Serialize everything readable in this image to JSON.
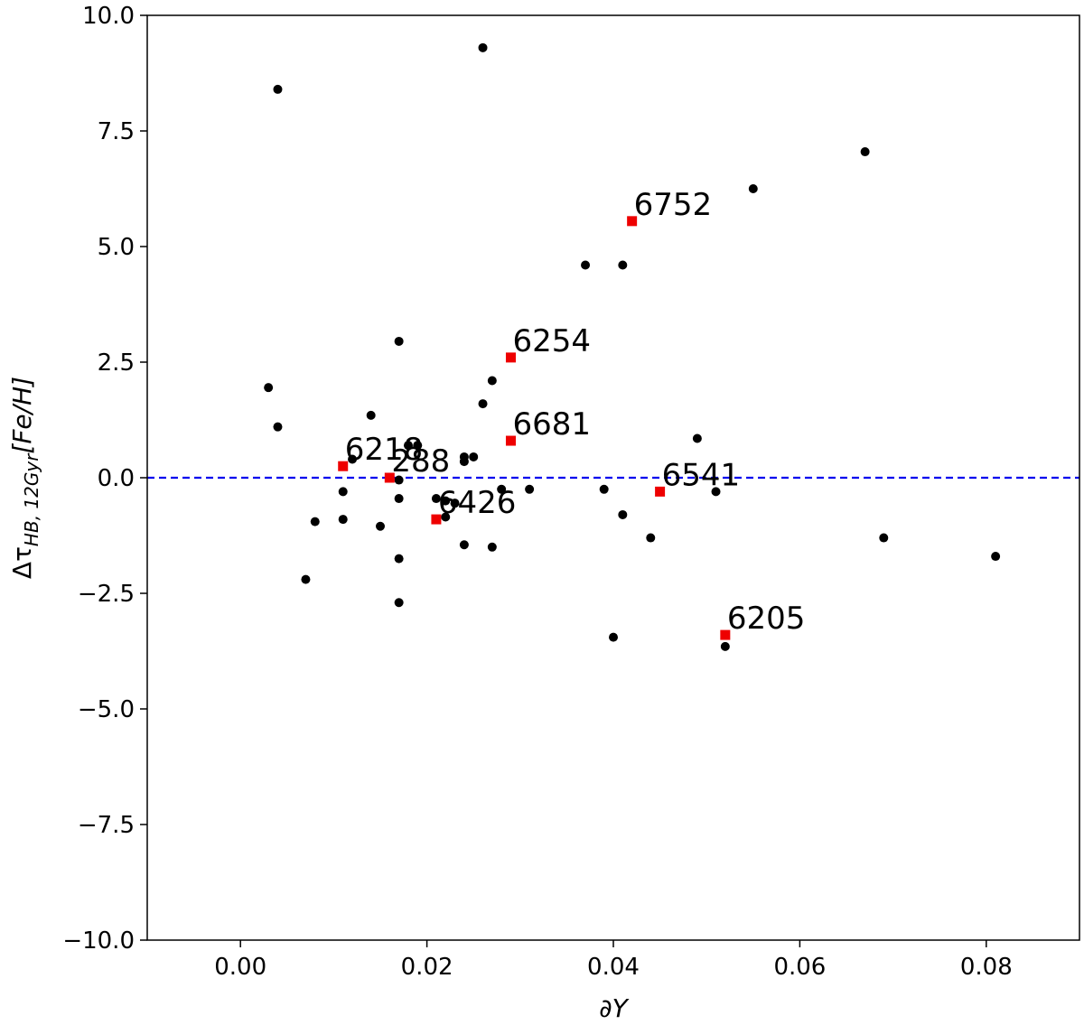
{
  "chart_data": {
    "type": "scatter",
    "xlabel": "∂Y",
    "ylabel_main": "Δτ",
    "ylabel_sub": "HB, 12Gyr",
    "ylabel_tail": "[Fe/H]",
    "xlim": [
      -0.01,
      0.09
    ],
    "ylim": [
      -10.0,
      10.0
    ],
    "x_ticks": [
      0.0,
      0.02,
      0.04,
      0.06,
      0.08
    ],
    "x_tick_labels": [
      "0.00",
      "0.02",
      "0.04",
      "0.06",
      "0.08"
    ],
    "y_ticks": [
      -10.0,
      -7.5,
      -5.0,
      -2.5,
      0.0,
      2.5,
      5.0,
      7.5,
      10.0
    ],
    "y_tick_labels": [
      "−10.0",
      "−7.5",
      "−5.0",
      "−2.5",
      "0.0",
      "2.5",
      "5.0",
      "7.5",
      "10.0"
    ],
    "reference_line": {
      "y": 0.0,
      "color": "#0000ee",
      "style": "dashed"
    },
    "series": [
      {
        "color": "#000000",
        "marker": "circle",
        "points": [
          {
            "x": 0.026,
            "y": 9.3
          },
          {
            "x": 0.004,
            "y": 8.4
          },
          {
            "x": 0.067,
            "y": 7.05
          },
          {
            "x": 0.055,
            "y": 6.25
          },
          {
            "x": 0.037,
            "y": 4.6
          },
          {
            "x": 0.041,
            "y": 4.6
          },
          {
            "x": 0.017,
            "y": 2.95
          },
          {
            "x": 0.027,
            "y": 2.1
          },
          {
            "x": 0.003,
            "y": 1.95
          },
          {
            "x": 0.026,
            "y": 1.6
          },
          {
            "x": 0.014,
            "y": 1.35
          },
          {
            "x": 0.004,
            "y": 1.1
          },
          {
            "x": 0.049,
            "y": 0.85
          },
          {
            "x": 0.018,
            "y": 0.7
          },
          {
            "x": 0.019,
            "y": 0.7
          },
          {
            "x": 0.024,
            "y": 0.45
          },
          {
            "x": 0.025,
            "y": 0.45
          },
          {
            "x": 0.012,
            "y": 0.4
          },
          {
            "x": 0.024,
            "y": 0.35
          },
          {
            "x": 0.017,
            "y": -0.05
          },
          {
            "x": 0.028,
            "y": -0.25
          },
          {
            "x": 0.031,
            "y": -0.25
          },
          {
            "x": 0.039,
            "y": -0.25
          },
          {
            "x": 0.011,
            "y": -0.3
          },
          {
            "x": 0.051,
            "y": -0.3
          },
          {
            "x": 0.017,
            "y": -0.45
          },
          {
            "x": 0.021,
            "y": -0.45
          },
          {
            "x": 0.022,
            "y": -0.5
          },
          {
            "x": 0.023,
            "y": -0.55
          },
          {
            "x": 0.041,
            "y": -0.8
          },
          {
            "x": 0.022,
            "y": -0.85
          },
          {
            "x": 0.011,
            "y": -0.9
          },
          {
            "x": 0.008,
            "y": -0.95
          },
          {
            "x": 0.015,
            "y": -1.05
          },
          {
            "x": 0.044,
            "y": -1.3
          },
          {
            "x": 0.069,
            "y": -1.3
          },
          {
            "x": 0.024,
            "y": -1.45
          },
          {
            "x": 0.027,
            "y": -1.5
          },
          {
            "x": 0.081,
            "y": -1.7
          },
          {
            "x": 0.017,
            "y": -1.75
          },
          {
            "x": 0.007,
            "y": -2.2
          },
          {
            "x": 0.017,
            "y": -2.7
          },
          {
            "x": 0.04,
            "y": -3.45
          },
          {
            "x": 0.052,
            "y": -3.65
          }
        ]
      },
      {
        "color": "#ee0000",
        "marker": "square",
        "points": [
          {
            "x": 0.042,
            "y": 5.55,
            "label": "6752"
          },
          {
            "x": 0.029,
            "y": 2.6,
            "label": "6254"
          },
          {
            "x": 0.029,
            "y": 0.8,
            "label": "6681"
          },
          {
            "x": 0.011,
            "y": 0.25,
            "label": "6218"
          },
          {
            "x": 0.016,
            "y": 0.0,
            "label": "288"
          },
          {
            "x": 0.045,
            "y": -0.3,
            "label": "6541"
          },
          {
            "x": 0.021,
            "y": -0.9,
            "label": "6426"
          },
          {
            "x": 0.052,
            "y": -3.4,
            "label": "6205"
          }
        ]
      }
    ]
  }
}
